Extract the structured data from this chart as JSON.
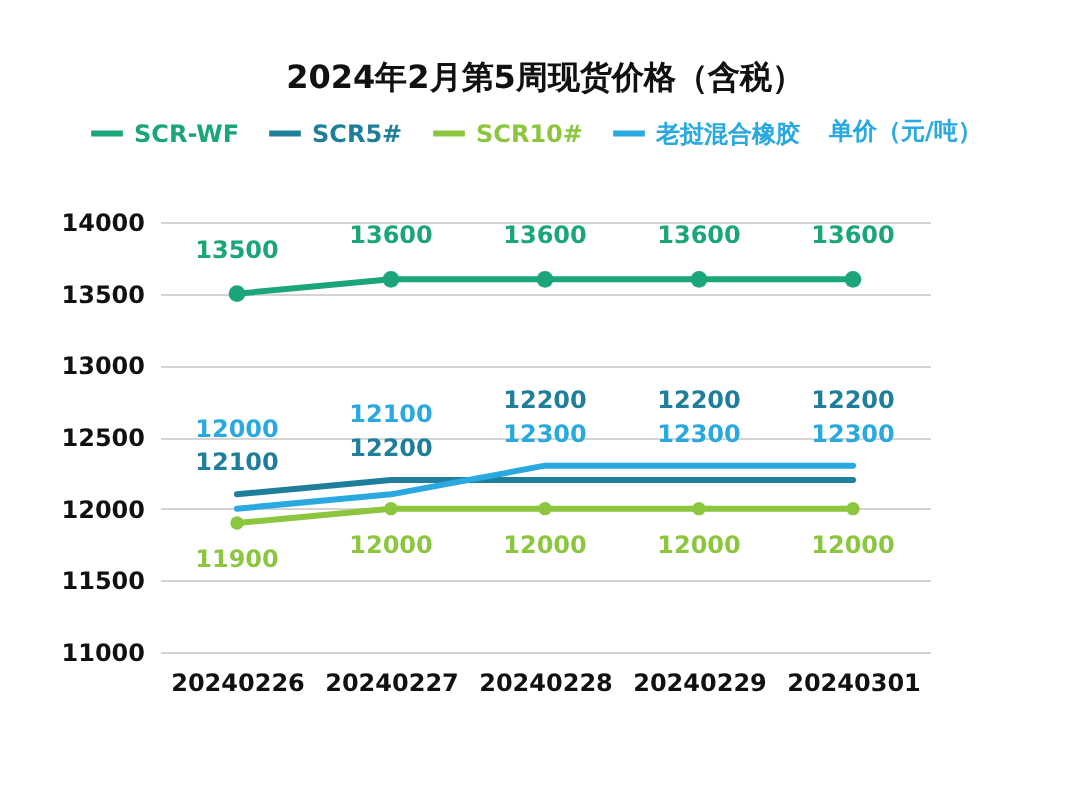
{
  "chart_data": {
    "type": "line",
    "title": "2024年2月第5周现货价格（含税）",
    "ylabel": "单价（元/吨）",
    "categories": [
      "20240226",
      "20240227",
      "20240228",
      "20240229",
      "20240301"
    ],
    "series": [
      {
        "name": "SCR-WF",
        "color": "#1aa57a",
        "values": [
          13500,
          13600,
          13600,
          13600,
          13600
        ],
        "marker": "circle"
      },
      {
        "name": "SCR5#",
        "color": "#1f7f9a",
        "values": [
          12100,
          12200,
          12200,
          12200,
          12200
        ],
        "marker": "none"
      },
      {
        "name": "SCR10#",
        "color": "#8cc63f",
        "values": [
          11900,
          12000,
          12000,
          12000,
          12000
        ],
        "marker": "circle"
      },
      {
        "name": "老挝混合橡胶",
        "color": "#29a9e0",
        "values": [
          12000,
          12100,
          12300,
          12300,
          12300
        ],
        "marker": "none"
      }
    ],
    "ylim": [
      11000,
      14000
    ],
    "yticks": [
      11000,
      11500,
      12000,
      12500,
      13000,
      13500,
      14000
    ],
    "grid": "y",
    "legend": "top",
    "data_labels": true
  }
}
